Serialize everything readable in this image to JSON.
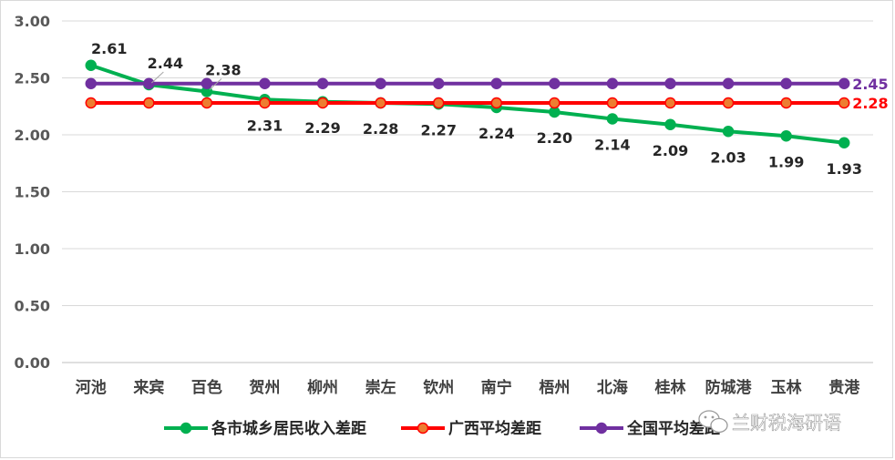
{
  "chart_data": {
    "type": "line",
    "categories": [
      "河池",
      "来宾",
      "百色",
      "贺州",
      "柳州",
      "崇左",
      "钦州",
      "南宁",
      "梧州",
      "北海",
      "桂林",
      "防城港",
      "玉林",
      "贵港"
    ],
    "series": [
      {
        "name": "各市城乡居民收入差距",
        "color": "#00b050",
        "values": [
          2.61,
          2.44,
          2.38,
          2.31,
          2.29,
          2.28,
          2.27,
          2.24,
          2.2,
          2.14,
          2.09,
          2.03,
          1.99,
          1.93
        ],
        "labels": [
          "2.61",
          "2.44",
          "2.38",
          "2.31",
          "2.29",
          "2.28",
          "2.27",
          "2.24",
          "2.20",
          "2.14",
          "2.09",
          "2.03",
          "1.99",
          "1.93"
        ]
      },
      {
        "name": "广西平均差距",
        "color": "#ff0000",
        "marker_fill": "#ed7d31",
        "values": [
          2.28,
          2.28,
          2.28,
          2.28,
          2.28,
          2.28,
          2.28,
          2.28,
          2.28,
          2.28,
          2.28,
          2.28,
          2.28,
          2.28
        ],
        "end_label": "2.28"
      },
      {
        "name": "全国平均差距",
        "color": "#7030a0",
        "values": [
          2.45,
          2.45,
          2.45,
          2.45,
          2.45,
          2.45,
          2.45,
          2.45,
          2.45,
          2.45,
          2.45,
          2.45,
          2.45,
          2.45
        ],
        "end_label": "2.45"
      }
    ],
    "ylim": [
      0,
      3
    ],
    "yticks": [
      "0.00",
      "0.50",
      "1.00",
      "1.50",
      "2.00",
      "2.50",
      "3.00"
    ],
    "grid": true,
    "legend_position": "bottom"
  },
  "watermark": {
    "text": "兰财税海研语",
    "icon": "wechat-icon"
  }
}
